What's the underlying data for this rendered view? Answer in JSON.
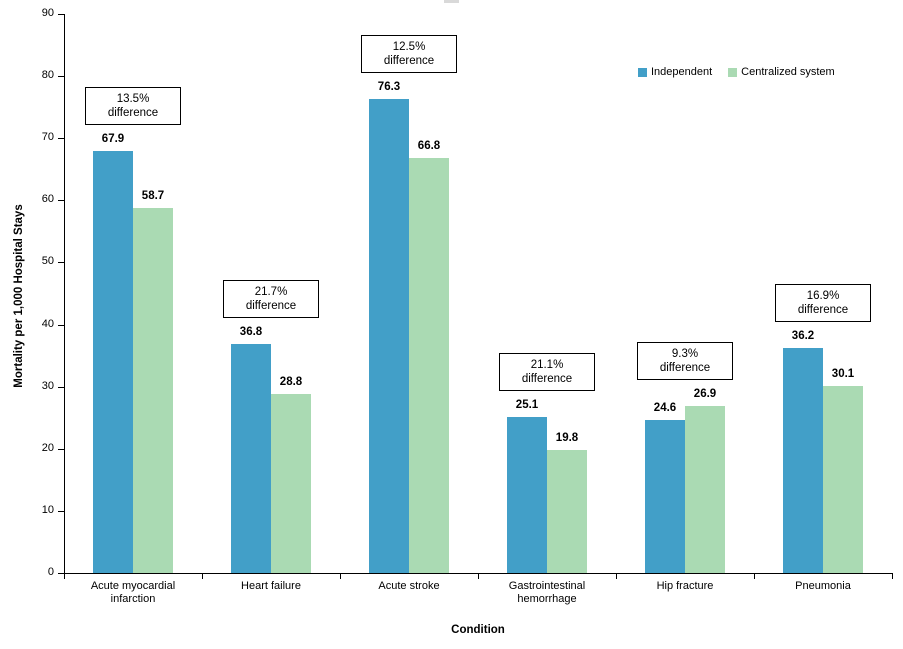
{
  "page": {
    "background": "#ffffff"
  },
  "chart_data": {
    "type": "bar",
    "title": "",
    "xlabel": "Condition",
    "ylabel": "Mortality per 1,000 Hospital Stays",
    "ylim": [
      0,
      90
    ],
    "ytick_step": 10,
    "grid": false,
    "legend_position": "top-right",
    "axis_color": "#000000",
    "annotation_box": {
      "border_color": "#000000",
      "background": "#ffffff"
    },
    "categories": [
      "Acute myocardial\ninfarction",
      "Heart failure",
      "Acute stroke",
      "Gastrointestinal\nhemorrhage",
      "Hip fracture",
      "Pneumonia"
    ],
    "series": [
      {
        "name": "Independent",
        "color": "#429fc8",
        "values": [
          67.9,
          36.8,
          76.3,
          25.1,
          24.6,
          36.2
        ]
      },
      {
        "name": "Centralized system",
        "color": "#aadab3",
        "values": [
          58.7,
          28.8,
          66.8,
          19.8,
          26.9,
          30.1
        ]
      }
    ],
    "annotations": [
      "13.5%\ndifference",
      "21.7%\ndifference",
      "12.5%\ndifference",
      "21.1%\ndifference",
      "9.3%\ndifference",
      "16.9%\ndifference"
    ]
  }
}
